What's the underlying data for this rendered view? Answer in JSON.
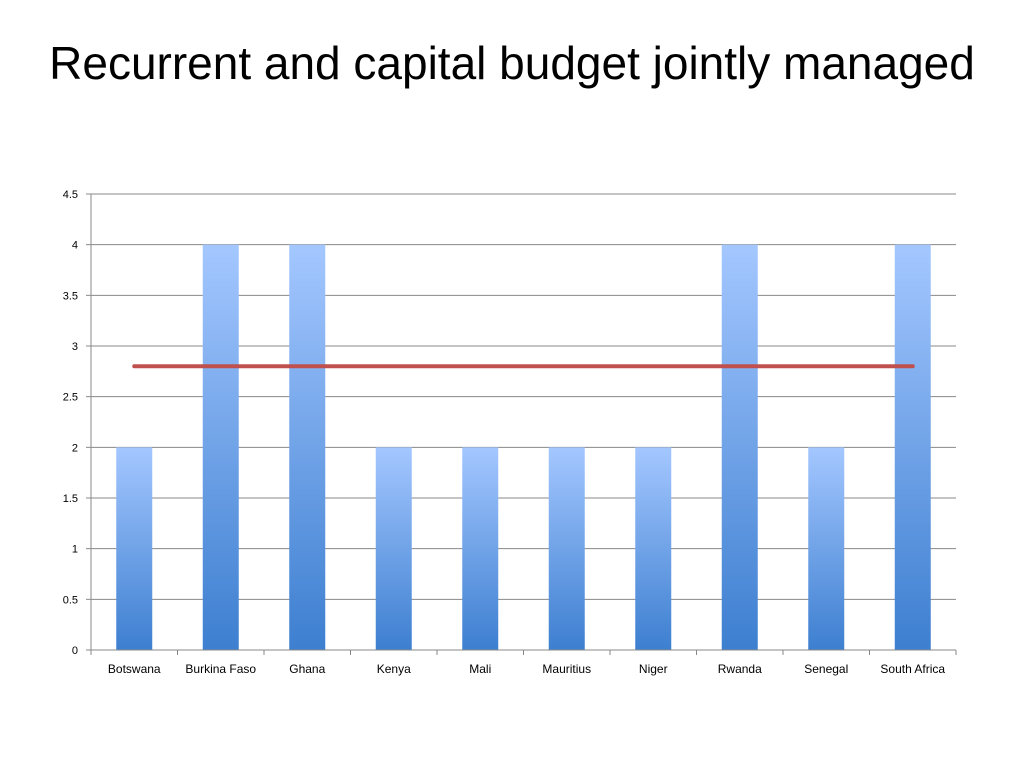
{
  "slide": {
    "title": "Recurrent and capital budget jointly managed"
  },
  "chart_data": {
    "type": "bar",
    "title": "",
    "xlabel": "",
    "ylabel": "",
    "categories": [
      "Botswana",
      "Burkina Faso",
      "Ghana",
      "Kenya",
      "Mali",
      "Mauritius",
      "Niger",
      "Rwanda",
      "Senegal",
      "South Africa"
    ],
    "series": [
      {
        "type": "bar",
        "values": [
          2,
          4,
          4,
          2,
          2,
          2,
          2,
          4,
          2,
          4
        ],
        "color": "#4a86d4"
      },
      {
        "type": "line",
        "values": [
          2.8,
          2.8,
          2.8,
          2.8,
          2.8,
          2.8,
          2.8,
          2.8,
          2.8,
          2.8
        ],
        "color": "#c0504d"
      }
    ],
    "ylim": [
      0,
      4.5
    ],
    "yticks": [
      "0",
      "0.5",
      "1",
      "1.5",
      "2",
      "2.5",
      "3",
      "3.5",
      "4",
      "4.5"
    ],
    "grid": true,
    "legend": "none",
    "colors": {
      "bar_top": "#a4c7ff",
      "bar_bottom": "#3d7fd0",
      "line": "#c0504d",
      "grid": "#888888"
    }
  }
}
